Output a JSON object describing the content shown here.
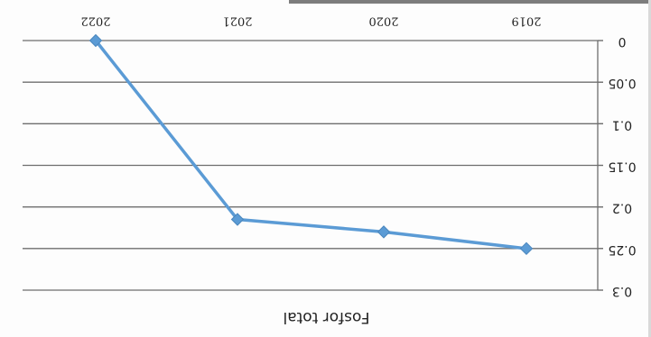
{
  "chart_data": {
    "type": "line",
    "title": "Fosfor total",
    "xlabel": "",
    "ylabel": "",
    "categories": [
      "2019",
      "2020",
      "2021",
      "2022"
    ],
    "series": [
      {
        "values": [
          0.25,
          0.23,
          0.215,
          0
        ]
      }
    ],
    "ylim": [
      0,
      0.3
    ],
    "yticks": [
      "0",
      "0.05",
      "0.1",
      "0.15",
      "0.2",
      "0.25",
      "0.3"
    ],
    "grid": true,
    "legend": "none",
    "orientation": "rotated 180 degrees",
    "colors": {
      "line": "#5b9bd5",
      "marker": "#5b9bd5",
      "grid": "#6e6e6e"
    }
  }
}
